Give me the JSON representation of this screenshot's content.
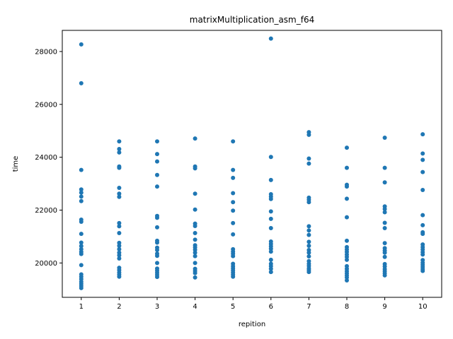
{
  "chart_data": {
    "type": "scatter",
    "title": "matrixMultiplication_asm_f64",
    "xlabel": "repition",
    "ylabel": "time",
    "xlim": [
      0.5,
      10.5
    ],
    "ylim": [
      18700,
      28800
    ],
    "xticks": [
      1,
      2,
      3,
      4,
      5,
      6,
      7,
      8,
      9,
      10
    ],
    "yticks": [
      20000,
      22000,
      24000,
      26000,
      28000
    ],
    "grid": false,
    "marker_color": "#1f77b4",
    "points": [
      {
        "x": 1,
        "y": 28270
      },
      {
        "x": 1,
        "y": 26800
      },
      {
        "x": 1,
        "y": 23520
      },
      {
        "x": 1,
        "y": 22780
      },
      {
        "x": 1,
        "y": 22660
      },
      {
        "x": 1,
        "y": 22510
      },
      {
        "x": 1,
        "y": 22340
      },
      {
        "x": 1,
        "y": 21640
      },
      {
        "x": 1,
        "y": 21560
      },
      {
        "x": 1,
        "y": 21100
      },
      {
        "x": 1,
        "y": 20770
      },
      {
        "x": 1,
        "y": 20640
      },
      {
        "x": 1,
        "y": 20520
      },
      {
        "x": 1,
        "y": 20420
      },
      {
        "x": 1,
        "y": 20340
      },
      {
        "x": 1,
        "y": 19920
      },
      {
        "x": 1,
        "y": 19570
      },
      {
        "x": 1,
        "y": 19480
      },
      {
        "x": 1,
        "y": 19390
      },
      {
        "x": 1,
        "y": 19290
      },
      {
        "x": 1,
        "y": 19210
      },
      {
        "x": 1,
        "y": 19130
      },
      {
        "x": 1,
        "y": 19050
      },
      {
        "x": 2,
        "y": 24600
      },
      {
        "x": 2,
        "y": 24310
      },
      {
        "x": 2,
        "y": 24180
      },
      {
        "x": 2,
        "y": 23650
      },
      {
        "x": 2,
        "y": 23600
      },
      {
        "x": 2,
        "y": 22840
      },
      {
        "x": 2,
        "y": 22620
      },
      {
        "x": 2,
        "y": 22500
      },
      {
        "x": 2,
        "y": 21510
      },
      {
        "x": 2,
        "y": 21390
      },
      {
        "x": 2,
        "y": 21130
      },
      {
        "x": 2,
        "y": 20760
      },
      {
        "x": 2,
        "y": 20650
      },
      {
        "x": 2,
        "y": 20520
      },
      {
        "x": 2,
        "y": 20390
      },
      {
        "x": 2,
        "y": 20290
      },
      {
        "x": 2,
        "y": 20170
      },
      {
        "x": 2,
        "y": 19820
      },
      {
        "x": 2,
        "y": 19730
      },
      {
        "x": 2,
        "y": 19640
      },
      {
        "x": 2,
        "y": 19560
      },
      {
        "x": 2,
        "y": 19480
      },
      {
        "x": 3,
        "y": 24600
      },
      {
        "x": 3,
        "y": 24120
      },
      {
        "x": 3,
        "y": 23840
      },
      {
        "x": 3,
        "y": 23330
      },
      {
        "x": 3,
        "y": 22890
      },
      {
        "x": 3,
        "y": 21780
      },
      {
        "x": 3,
        "y": 21710
      },
      {
        "x": 3,
        "y": 21350
      },
      {
        "x": 3,
        "y": 20840
      },
      {
        "x": 3,
        "y": 20770
      },
      {
        "x": 3,
        "y": 20580
      },
      {
        "x": 3,
        "y": 20490
      },
      {
        "x": 3,
        "y": 20350
      },
      {
        "x": 3,
        "y": 20270
      },
      {
        "x": 3,
        "y": 20000
      },
      {
        "x": 3,
        "y": 19790
      },
      {
        "x": 3,
        "y": 19710
      },
      {
        "x": 3,
        "y": 19630
      },
      {
        "x": 3,
        "y": 19550
      },
      {
        "x": 3,
        "y": 19470
      },
      {
        "x": 4,
        "y": 24710
      },
      {
        "x": 4,
        "y": 23650
      },
      {
        "x": 4,
        "y": 23580
      },
      {
        "x": 4,
        "y": 22620
      },
      {
        "x": 4,
        "y": 22020
      },
      {
        "x": 4,
        "y": 21490
      },
      {
        "x": 4,
        "y": 21400
      },
      {
        "x": 4,
        "y": 21130
      },
      {
        "x": 4,
        "y": 20880
      },
      {
        "x": 4,
        "y": 20670
      },
      {
        "x": 4,
        "y": 20590
      },
      {
        "x": 4,
        "y": 20500
      },
      {
        "x": 4,
        "y": 20390
      },
      {
        "x": 4,
        "y": 20260
      },
      {
        "x": 4,
        "y": 20000
      },
      {
        "x": 4,
        "y": 19780
      },
      {
        "x": 4,
        "y": 19700
      },
      {
        "x": 4,
        "y": 19620
      },
      {
        "x": 4,
        "y": 19450
      },
      {
        "x": 5,
        "y": 24600
      },
      {
        "x": 5,
        "y": 23520
      },
      {
        "x": 5,
        "y": 23220
      },
      {
        "x": 5,
        "y": 22640
      },
      {
        "x": 5,
        "y": 22300
      },
      {
        "x": 5,
        "y": 21980
      },
      {
        "x": 5,
        "y": 21510
      },
      {
        "x": 5,
        "y": 21080
      },
      {
        "x": 5,
        "y": 20520
      },
      {
        "x": 5,
        "y": 20430
      },
      {
        "x": 5,
        "y": 20350
      },
      {
        "x": 5,
        "y": 20260
      },
      {
        "x": 5,
        "y": 19970
      },
      {
        "x": 5,
        "y": 19880
      },
      {
        "x": 5,
        "y": 19800
      },
      {
        "x": 5,
        "y": 19720
      },
      {
        "x": 5,
        "y": 19640
      },
      {
        "x": 5,
        "y": 19560
      },
      {
        "x": 5,
        "y": 19480
      },
      {
        "x": 6,
        "y": 28490
      },
      {
        "x": 6,
        "y": 24010
      },
      {
        "x": 6,
        "y": 23140
      },
      {
        "x": 6,
        "y": 22600
      },
      {
        "x": 6,
        "y": 22510
      },
      {
        "x": 6,
        "y": 22420
      },
      {
        "x": 6,
        "y": 21950
      },
      {
        "x": 6,
        "y": 21670
      },
      {
        "x": 6,
        "y": 21320
      },
      {
        "x": 6,
        "y": 20810
      },
      {
        "x": 6,
        "y": 20720
      },
      {
        "x": 6,
        "y": 20630
      },
      {
        "x": 6,
        "y": 20540
      },
      {
        "x": 6,
        "y": 20430
      },
      {
        "x": 6,
        "y": 20120
      },
      {
        "x": 6,
        "y": 19970
      },
      {
        "x": 6,
        "y": 19880
      },
      {
        "x": 6,
        "y": 19780
      },
      {
        "x": 6,
        "y": 19660
      },
      {
        "x": 7,
        "y": 24950
      },
      {
        "x": 7,
        "y": 24850
      },
      {
        "x": 7,
        "y": 23950
      },
      {
        "x": 7,
        "y": 23760
      },
      {
        "x": 7,
        "y": 22470
      },
      {
        "x": 7,
        "y": 22390
      },
      {
        "x": 7,
        "y": 22300
      },
      {
        "x": 7,
        "y": 21390
      },
      {
        "x": 7,
        "y": 21230
      },
      {
        "x": 7,
        "y": 21060
      },
      {
        "x": 7,
        "y": 20800
      },
      {
        "x": 7,
        "y": 20650
      },
      {
        "x": 7,
        "y": 20490
      },
      {
        "x": 7,
        "y": 20390
      },
      {
        "x": 7,
        "y": 20250
      },
      {
        "x": 7,
        "y": 20070
      },
      {
        "x": 7,
        "y": 19970
      },
      {
        "x": 7,
        "y": 19890
      },
      {
        "x": 7,
        "y": 19800
      },
      {
        "x": 7,
        "y": 19730
      },
      {
        "x": 7,
        "y": 19660
      },
      {
        "x": 8,
        "y": 24360
      },
      {
        "x": 8,
        "y": 23600
      },
      {
        "x": 8,
        "y": 22960
      },
      {
        "x": 8,
        "y": 22890
      },
      {
        "x": 8,
        "y": 22430
      },
      {
        "x": 8,
        "y": 21730
      },
      {
        "x": 8,
        "y": 20840
      },
      {
        "x": 8,
        "y": 20600
      },
      {
        "x": 8,
        "y": 20510
      },
      {
        "x": 8,
        "y": 20420
      },
      {
        "x": 8,
        "y": 20320
      },
      {
        "x": 8,
        "y": 20230
      },
      {
        "x": 8,
        "y": 20120
      },
      {
        "x": 8,
        "y": 19880
      },
      {
        "x": 8,
        "y": 19780
      },
      {
        "x": 8,
        "y": 19690
      },
      {
        "x": 8,
        "y": 19610
      },
      {
        "x": 8,
        "y": 19530
      },
      {
        "x": 8,
        "y": 19450
      },
      {
        "x": 8,
        "y": 19340
      },
      {
        "x": 9,
        "y": 24740
      },
      {
        "x": 9,
        "y": 23600
      },
      {
        "x": 9,
        "y": 23050
      },
      {
        "x": 9,
        "y": 22140
      },
      {
        "x": 9,
        "y": 22040
      },
      {
        "x": 9,
        "y": 21920
      },
      {
        "x": 9,
        "y": 21520
      },
      {
        "x": 9,
        "y": 21320
      },
      {
        "x": 9,
        "y": 20750
      },
      {
        "x": 9,
        "y": 20560
      },
      {
        "x": 9,
        "y": 20470
      },
      {
        "x": 9,
        "y": 20390
      },
      {
        "x": 9,
        "y": 20230
      },
      {
        "x": 9,
        "y": 19960
      },
      {
        "x": 9,
        "y": 19870
      },
      {
        "x": 9,
        "y": 19770
      },
      {
        "x": 9,
        "y": 19690
      },
      {
        "x": 9,
        "y": 19610
      },
      {
        "x": 9,
        "y": 19530
      },
      {
        "x": 10,
        "y": 24870
      },
      {
        "x": 10,
        "y": 24140
      },
      {
        "x": 10,
        "y": 23900
      },
      {
        "x": 10,
        "y": 23440
      },
      {
        "x": 10,
        "y": 22760
      },
      {
        "x": 10,
        "y": 21810
      },
      {
        "x": 10,
        "y": 21430
      },
      {
        "x": 10,
        "y": 21160
      },
      {
        "x": 10,
        "y": 21100
      },
      {
        "x": 10,
        "y": 20700
      },
      {
        "x": 10,
        "y": 20600
      },
      {
        "x": 10,
        "y": 20510
      },
      {
        "x": 10,
        "y": 20410
      },
      {
        "x": 10,
        "y": 20320
      },
      {
        "x": 10,
        "y": 20110
      },
      {
        "x": 10,
        "y": 20010
      },
      {
        "x": 10,
        "y": 19930
      },
      {
        "x": 10,
        "y": 19850
      },
      {
        "x": 10,
        "y": 19770
      },
      {
        "x": 10,
        "y": 19700
      }
    ]
  }
}
